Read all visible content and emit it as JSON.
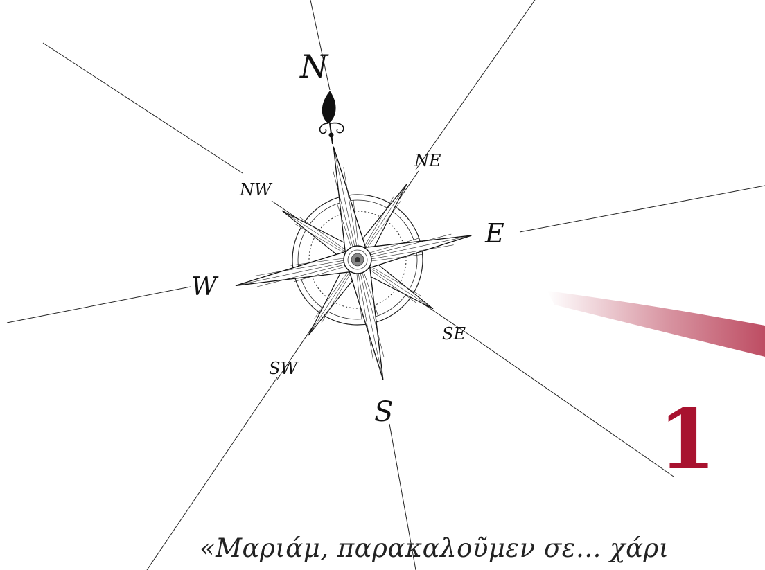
{
  "compass": {
    "north": "N",
    "northeast": "NE",
    "east": "E",
    "southeast": "SE",
    "south": "S",
    "southwest": "SW",
    "west": "W",
    "northwest": "NW"
  },
  "chapter": {
    "number": "1"
  },
  "quote": {
    "text": "«Μαριάμ, παρακαλοῦμεν σε... χάρι"
  },
  "colors": {
    "accent": "#a8122f",
    "ink": "#111111"
  }
}
